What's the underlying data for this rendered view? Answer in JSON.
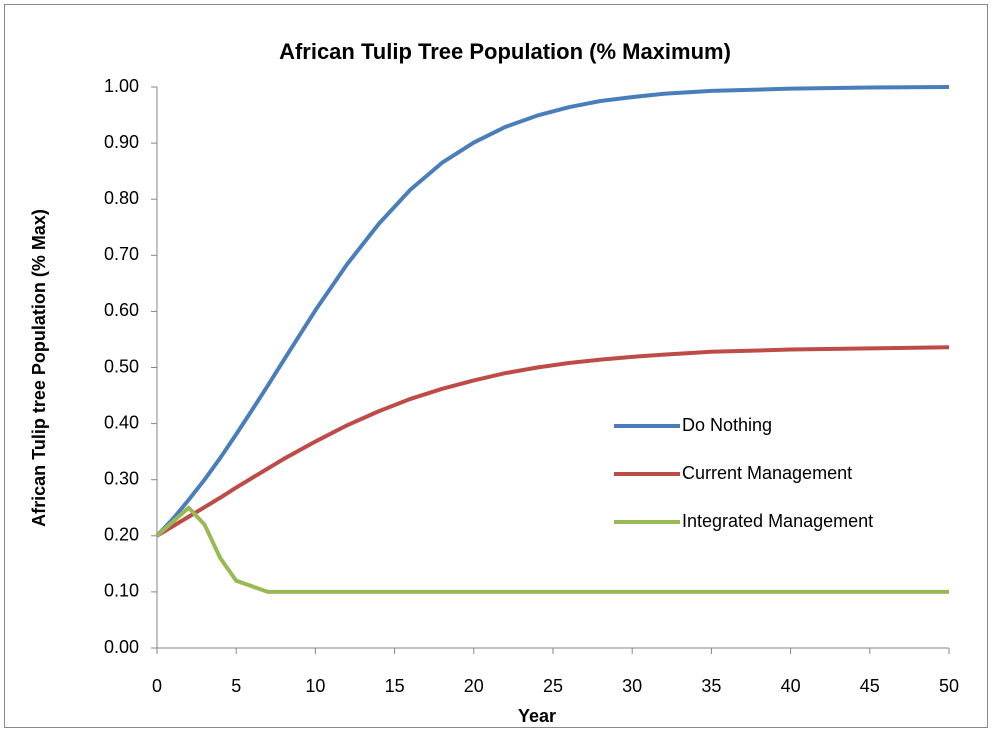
{
  "chart_data": {
    "type": "line",
    "title": "African Tulip Tree Population (% Maximum)",
    "x_label": "Year",
    "y_label": "African Tulip tree Population (% Max)",
    "x": [
      0,
      1,
      2,
      3,
      4,
      5,
      6,
      7,
      8,
      10,
      12,
      14,
      16,
      18,
      20,
      22,
      24,
      26,
      28,
      30,
      32,
      35,
      40,
      45,
      50
    ],
    "series": [
      {
        "name": "Do Nothing",
        "color": "#4a7ebb",
        "values": [
          0.2,
          0.23,
          0.264,
          0.3,
          0.339,
          0.381,
          0.424,
          0.468,
          0.513,
          0.602,
          0.684,
          0.756,
          0.817,
          0.865,
          0.901,
          0.929,
          0.949,
          0.964,
          0.975,
          0.982,
          0.988,
          0.993,
          0.997,
          0.999,
          1.0
        ]
      },
      {
        "name": "Current Management",
        "color": "#be4b48",
        "values": [
          0.2,
          0.217,
          0.234,
          0.251,
          0.268,
          0.286,
          0.303,
          0.32,
          0.337,
          0.368,
          0.397,
          0.422,
          0.444,
          0.462,
          0.477,
          0.49,
          0.5,
          0.508,
          0.514,
          0.519,
          0.523,
          0.528,
          0.532,
          0.534,
          0.536
        ]
      },
      {
        "name": "Integrated Management",
        "color": "#98b954",
        "values": [
          0.2,
          0.225,
          0.25,
          0.22,
          0.16,
          0.12,
          0.11,
          0.1,
          0.1,
          0.1,
          0.1,
          0.1,
          0.1,
          0.1,
          0.1,
          0.1,
          0.1,
          0.1,
          0.1,
          0.1,
          0.1,
          0.1,
          0.1,
          0.1,
          0.1
        ]
      }
    ],
    "xlim": [
      0,
      50
    ],
    "xticks": [
      0,
      5,
      10,
      15,
      20,
      25,
      30,
      35,
      40,
      45,
      50
    ],
    "ylim": [
      0,
      1
    ],
    "yticks": [
      {
        "value": 0,
        "label": "0.00"
      },
      {
        "value": 0.1,
        "label": "0.10"
      },
      {
        "value": 0.2,
        "label": "0.20"
      },
      {
        "value": 0.3,
        "label": "0.30"
      },
      {
        "value": 0.4,
        "label": "0.40"
      },
      {
        "value": 0.5,
        "label": "0.50"
      },
      {
        "value": 0.6,
        "label": "0.60"
      },
      {
        "value": 0.7,
        "label": "0.70"
      },
      {
        "value": 0.8,
        "label": "0.80"
      },
      {
        "value": 0.9,
        "label": "0.90"
      },
      {
        "value": 1,
        "label": "1.00"
      }
    ],
    "grid": false,
    "legend": "right"
  }
}
